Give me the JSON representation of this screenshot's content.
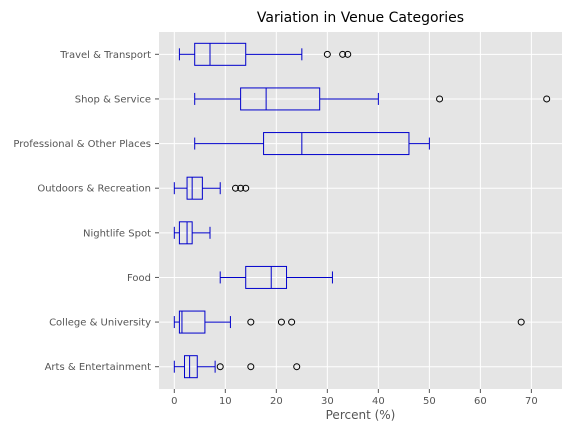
{
  "chart_data": {
    "type": "box",
    "orientation": "horizontal",
    "title": "Variation in Venue Categories",
    "xlabel": "Percent (%)",
    "ylabel": "",
    "xlim": [
      -3,
      76
    ],
    "xticks": [
      0,
      10,
      20,
      30,
      40,
      50,
      60,
      70
    ],
    "grid": true,
    "style": {
      "background": "#e5e5e5",
      "grid_color": "#ffffff",
      "box_color": "#0000cc",
      "tick_color": "#555555"
    },
    "categories": [
      "Arts & Entertainment",
      "College & University",
      "Food",
      "Nightlife Spot",
      "Outdoors & Recreation",
      "Professional & Other Places",
      "Shop & Service",
      "Travel & Transport"
    ],
    "series": [
      {
        "category": "Arts & Entertainment",
        "whisker_low": 0,
        "q1": 2,
        "median": 3,
        "q3": 4.5,
        "whisker_high": 8,
        "outliers": [
          9,
          15,
          24
        ]
      },
      {
        "category": "College & University",
        "whisker_low": 0,
        "q1": 1,
        "median": 1.5,
        "q3": 6,
        "whisker_high": 11,
        "outliers": [
          15,
          21,
          23,
          68
        ]
      },
      {
        "category": "Food",
        "whisker_low": 9,
        "q1": 14,
        "median": 19,
        "q3": 22,
        "whisker_high": 31,
        "outliers": []
      },
      {
        "category": "Nightlife Spot",
        "whisker_low": 0,
        "q1": 1,
        "median": 2.5,
        "q3": 3.5,
        "whisker_high": 7,
        "outliers": []
      },
      {
        "category": "Outdoors & Recreation",
        "whisker_low": 0,
        "q1": 2.5,
        "median": 3.5,
        "q3": 5.5,
        "whisker_high": 9,
        "outliers": [
          12,
          13,
          14
        ]
      },
      {
        "category": "Professional & Other Places",
        "whisker_low": 4,
        "q1": 17.5,
        "median": 25,
        "q3": 46,
        "whisker_high": 50,
        "outliers": []
      },
      {
        "category": "Shop & Service",
        "whisker_low": 4,
        "q1": 13,
        "median": 18,
        "q3": 28.5,
        "whisker_high": 40,
        "outliers": [
          52,
          73
        ]
      },
      {
        "category": "Travel & Transport",
        "whisker_low": 1,
        "q1": 4,
        "median": 7,
        "q3": 14,
        "whisker_high": 25,
        "outliers": [
          30,
          33,
          34
        ]
      }
    ]
  }
}
